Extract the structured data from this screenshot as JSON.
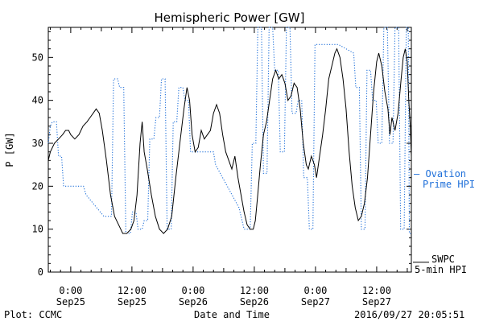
{
  "chart_data": {
    "type": "line",
    "title": "Hemispheric Power [GW]",
    "ylabel": "P [GW]",
    "xlabel": "Date and Time",
    "ylim": [
      0,
      57
    ],
    "yticks": [
      0,
      10,
      20,
      30,
      40,
      50
    ],
    "x_unit": "hours after 2016-09-25 00:00 UT",
    "xlim": [
      -4.4,
      66.8
    ],
    "xticks": [
      {
        "x": 0,
        "time": "0:00",
        "date": "Sep25"
      },
      {
        "x": 12,
        "time": "12:00",
        "date": "Sep25"
      },
      {
        "x": 24,
        "time": "0:00",
        "date": "Sep26"
      },
      {
        "x": 36,
        "time": "12:00",
        "date": "Sep26"
      },
      {
        "x": 48,
        "time": "0:00",
        "date": "Sep27"
      },
      {
        "x": 60,
        "time": "12:00",
        "date": "Sep27"
      }
    ],
    "series": [
      {
        "name": "Ovation Prime HPI",
        "legend_lines": [
          "— Ovation",
          "Prime HPI"
        ],
        "color": "#1e6fd9",
        "style": "dotted",
        "points": [
          [
            -4.4,
            30
          ],
          [
            -4.0,
            34
          ],
          [
            -3.6,
            35
          ],
          [
            -2.8,
            35
          ],
          [
            -2.4,
            27
          ],
          [
            -1.8,
            27
          ],
          [
            -1.4,
            20
          ],
          [
            2.5,
            20
          ],
          [
            3.0,
            18
          ],
          [
            6.5,
            13
          ],
          [
            8.0,
            13
          ],
          [
            8.4,
            45
          ],
          [
            9.2,
            45
          ],
          [
            9.6,
            43
          ],
          [
            10.4,
            43
          ],
          [
            10.8,
            9
          ],
          [
            11.7,
            9
          ],
          [
            12.1,
            14
          ],
          [
            12.8,
            14
          ],
          [
            13.2,
            10
          ],
          [
            14.0,
            10
          ],
          [
            14.4,
            12
          ],
          [
            15.1,
            12
          ],
          [
            15.5,
            31
          ],
          [
            16.3,
            31
          ],
          [
            16.7,
            36
          ],
          [
            17.4,
            36
          ],
          [
            17.8,
            45
          ],
          [
            18.5,
            45
          ],
          [
            18.9,
            10
          ],
          [
            19.7,
            10
          ],
          [
            20.1,
            35
          ],
          [
            20.8,
            35
          ],
          [
            21.2,
            43
          ],
          [
            22.0,
            43
          ],
          [
            22.4,
            40
          ],
          [
            23.1,
            40
          ],
          [
            23.5,
            28
          ],
          [
            28.0,
            28
          ],
          [
            28.4,
            25
          ],
          [
            33.0,
            15
          ],
          [
            34.0,
            10
          ],
          [
            35.2,
            10
          ],
          [
            35.6,
            30
          ],
          [
            36.3,
            30
          ],
          [
            36.7,
            57
          ],
          [
            37.4,
            57
          ],
          [
            37.8,
            23
          ],
          [
            38.5,
            23
          ],
          [
            38.9,
            57
          ],
          [
            39.6,
            57
          ],
          [
            40.0,
            47
          ],
          [
            40.7,
            47
          ],
          [
            41.1,
            28
          ],
          [
            41.9,
            28
          ],
          [
            42.3,
            57
          ],
          [
            43.0,
            57
          ],
          [
            43.4,
            37
          ],
          [
            44.2,
            37
          ],
          [
            44.6,
            40
          ],
          [
            45.3,
            40
          ],
          [
            45.7,
            22
          ],
          [
            46.4,
            22
          ],
          [
            46.8,
            10
          ],
          [
            47.5,
            10
          ],
          [
            47.9,
            53
          ],
          [
            52.5,
            53
          ],
          [
            55.5,
            51
          ],
          [
            55.9,
            43
          ],
          [
            56.6,
            43
          ],
          [
            57.0,
            10
          ],
          [
            57.7,
            10
          ],
          [
            58.1,
            47
          ],
          [
            58.8,
            47
          ],
          [
            59.2,
            40
          ],
          [
            59.9,
            40
          ],
          [
            60.3,
            30
          ],
          [
            61.0,
            30
          ],
          [
            61.4,
            57
          ],
          [
            62.1,
            57
          ],
          [
            62.5,
            30
          ],
          [
            63.2,
            30
          ],
          [
            63.6,
            57
          ],
          [
            64.3,
            57
          ],
          [
            64.7,
            10
          ],
          [
            65.4,
            10
          ],
          [
            65.8,
            57
          ],
          [
            66.2,
            57
          ],
          [
            66.4,
            9
          ],
          [
            66.8,
            9
          ]
        ]
      },
      {
        "name": "SWPC 5-min HPI",
        "legend_lines": [
          "SWPC",
          "5-min HPI"
        ],
        "color": "#000000",
        "style": "solid",
        "points": [
          [
            -4.4,
            26
          ],
          [
            -4.0,
            28
          ],
          [
            -3.2,
            30
          ],
          [
            -2.4,
            31
          ],
          [
            -1.6,
            32
          ],
          [
            -1.0,
            33
          ],
          [
            -0.4,
            33
          ],
          [
            0.0,
            32
          ],
          [
            0.8,
            31
          ],
          [
            1.6,
            32
          ],
          [
            2.4,
            34
          ],
          [
            3.2,
            35
          ],
          [
            3.8,
            36
          ],
          [
            4.4,
            37
          ],
          [
            5.0,
            38
          ],
          [
            5.6,
            37
          ],
          [
            6.2,
            33
          ],
          [
            7.0,
            26
          ],
          [
            7.8,
            18
          ],
          [
            8.6,
            13
          ],
          [
            9.4,
            11
          ],
          [
            10.2,
            9
          ],
          [
            11.0,
            9
          ],
          [
            11.8,
            10
          ],
          [
            12.4,
            12
          ],
          [
            13.0,
            18
          ],
          [
            13.6,
            30
          ],
          [
            14.0,
            35
          ],
          [
            14.4,
            28
          ],
          [
            15.0,
            24
          ],
          [
            15.8,
            18
          ],
          [
            16.6,
            13
          ],
          [
            17.4,
            10
          ],
          [
            18.2,
            9
          ],
          [
            19.0,
            10
          ],
          [
            19.8,
            13
          ],
          [
            20.6,
            22
          ],
          [
            21.4,
            30
          ],
          [
            22.2,
            38
          ],
          [
            22.8,
            43
          ],
          [
            23.3,
            40
          ],
          [
            23.8,
            32
          ],
          [
            24.4,
            28
          ],
          [
            25.0,
            29
          ],
          [
            25.6,
            33
          ],
          [
            26.2,
            31
          ],
          [
            26.8,
            32
          ],
          [
            27.4,
            33
          ],
          [
            28.0,
            37
          ],
          [
            28.6,
            39
          ],
          [
            29.2,
            37
          ],
          [
            29.8,
            32
          ],
          [
            30.4,
            28
          ],
          [
            31.0,
            26
          ],
          [
            31.6,
            24
          ],
          [
            32.2,
            27
          ],
          [
            32.8,
            22
          ],
          [
            33.4,
            18
          ],
          [
            34.0,
            14
          ],
          [
            34.6,
            11
          ],
          [
            35.2,
            10
          ],
          [
            35.8,
            10
          ],
          [
            36.2,
            12
          ],
          [
            36.6,
            17
          ],
          [
            37.2,
            25
          ],
          [
            37.8,
            32
          ],
          [
            38.4,
            35
          ],
          [
            39.0,
            40
          ],
          [
            39.6,
            45
          ],
          [
            40.2,
            47
          ],
          [
            40.8,
            45
          ],
          [
            41.4,
            46
          ],
          [
            42.0,
            44
          ],
          [
            42.6,
            40
          ],
          [
            43.2,
            41
          ],
          [
            43.8,
            44
          ],
          [
            44.4,
            43
          ],
          [
            45.0,
            38
          ],
          [
            45.6,
            30
          ],
          [
            46.2,
            25
          ],
          [
            46.6,
            24
          ],
          [
            47.2,
            27
          ],
          [
            47.8,
            25
          ],
          [
            48.2,
            22
          ],
          [
            48.8,
            27
          ],
          [
            49.4,
            32
          ],
          [
            50.0,
            38
          ],
          [
            50.6,
            45
          ],
          [
            51.2,
            48
          ],
          [
            51.8,
            51
          ],
          [
            52.2,
            52
          ],
          [
            52.8,
            50
          ],
          [
            53.4,
            45
          ],
          [
            54.0,
            38
          ],
          [
            54.6,
            28
          ],
          [
            55.2,
            20
          ],
          [
            55.8,
            15
          ],
          [
            56.4,
            12
          ],
          [
            57.0,
            13
          ],
          [
            57.6,
            16
          ],
          [
            58.2,
            22
          ],
          [
            58.8,
            32
          ],
          [
            59.4,
            42
          ],
          [
            60.0,
            49
          ],
          [
            60.4,
            51
          ],
          [
            61.0,
            48
          ],
          [
            61.6,
            42
          ],
          [
            62.2,
            38
          ],
          [
            62.6,
            32
          ],
          [
            63.0,
            36
          ],
          [
            63.6,
            33
          ],
          [
            64.2,
            37
          ],
          [
            64.8,
            45
          ],
          [
            65.2,
            50
          ],
          [
            65.6,
            52
          ],
          [
            66.0,
            49
          ],
          [
            66.3,
            40
          ],
          [
            66.6,
            34
          ],
          [
            66.8,
            27
          ]
        ]
      }
    ],
    "annotations": {
      "plot_credit": "Plot: CCMC",
      "timestamp": "2016/09/27 20:05:51"
    }
  }
}
